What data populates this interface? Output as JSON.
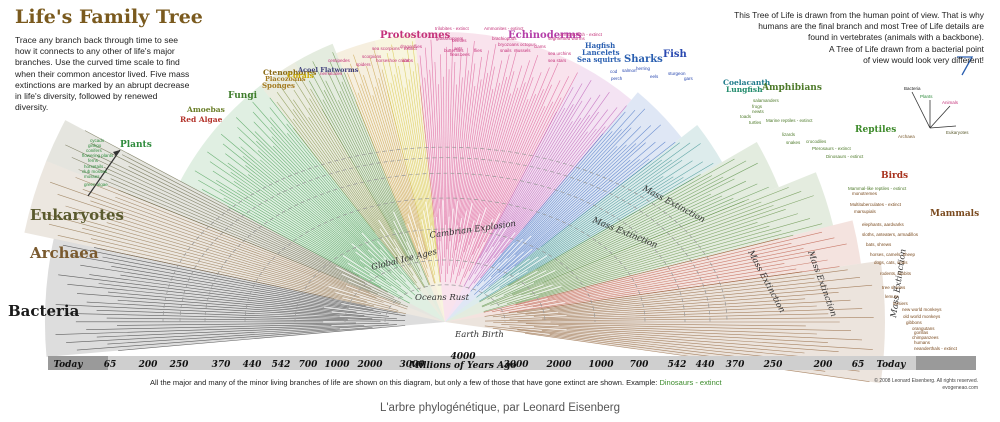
{
  "title": "Life's Family Tree",
  "intro_text": "Trace any branch back through time to see how it connects to any other of life's major branches. Use the curved time scale to find when their common ancestor lived. Five mass extinctions are marked by an abrupt decrease in life's diversity, followed by renewed diversity.",
  "note_lines": [
    "This Tree of Life is drawn from the human point of view. That is why",
    "humans are the final branch and most Tree of Life details are",
    "found in vertebrates (animals with a backbone).",
    "A Tree of Life drawn from a bacterial point",
    "of view would look very different!"
  ],
  "inset": {
    "bacteria": "Bacteria",
    "archaea": "Archaea",
    "plants": "Plants",
    "animals": "Animals",
    "eukaryotes": "Eukaryotes"
  },
  "big_labels": {
    "bacteria": "Bacteria",
    "archaea": "Archaea",
    "eukaryotes": "Eukaryotes"
  },
  "major_groups": [
    {
      "key": "plants",
      "label": "Plants",
      "color": "#2e8b3c"
    },
    {
      "key": "amoebas",
      "label": "Amoebas",
      "color": "#6b7f2a"
    },
    {
      "key": "red_algae",
      "label": "Red Algae",
      "color": "#b3322a"
    },
    {
      "key": "fungi",
      "label": "Fungi",
      "color": "#3f7d2c"
    },
    {
      "key": "sponges",
      "label": "Sponges",
      "color": "#a37a1f"
    },
    {
      "key": "placozoans",
      "label": "Placozoans",
      "color": "#a37a1f"
    },
    {
      "key": "ctenophores",
      "label": "Ctenophores",
      "color": "#8a6a14"
    },
    {
      "key": "corals",
      "label": "Corals",
      "color": "#c9a800"
    },
    {
      "key": "acoel",
      "label": "Acoel Flatworms",
      "color": "#3d3d7a"
    },
    {
      "key": "protostomes",
      "label": "Protostomes",
      "color": "#c4327a"
    },
    {
      "key": "echinoderms",
      "label": "Echinoderms",
      "color": "#b43ea8"
    },
    {
      "key": "hagfish",
      "label": "Hagfish",
      "color": "#2a5fb0"
    },
    {
      "key": "lancelets",
      "label": "Lancelets",
      "color": "#2a5fb0"
    },
    {
      "key": "sea_squirts",
      "label": "Sea squirts",
      "color": "#2a5fb0"
    },
    {
      "key": "sharks",
      "label": "Sharks",
      "color": "#2a5fb0"
    },
    {
      "key": "fish",
      "label": "Fish",
      "color": "#2a49b0"
    },
    {
      "key": "coelacanth",
      "label": "Coelacanth",
      "color": "#1e7a8a"
    },
    {
      "key": "lungfish",
      "label": "Lungfish",
      "color": "#1e8a6a"
    },
    {
      "key": "amphibians",
      "label": "Amphibians",
      "color": "#4e7a2a"
    },
    {
      "key": "reptiles",
      "label": "Reptiles",
      "color": "#3d8a2a"
    },
    {
      "key": "birds",
      "label": "Birds",
      "color": "#a8321e"
    },
    {
      "key": "mammals",
      "label": "Mammals",
      "color": "#7a4a1e"
    }
  ],
  "small_labels": [
    "flowering plants",
    "conifers",
    "ginkgo",
    "cycads",
    "ferns",
    "horsetails",
    "club mosses",
    "mosses",
    "green algae",
    "nematodes",
    "sea scorpions - extinct",
    "centipedes",
    "spiders",
    "scorpions",
    "crabs",
    "dragonflies",
    "horseshoe crabs",
    "trilobites - extinct",
    "grasshoppers",
    "beetles",
    "ants",
    "butterflies",
    "fleas",
    "bees",
    "flies",
    "Ammonites - extinct",
    "brachiopods",
    "bryozoans",
    "octopus",
    "mussels",
    "snails",
    "clams",
    "sea urchins",
    "sea stars",
    "segmented worms",
    "armored fish - extinct",
    "cod",
    "perch",
    "salmon",
    "herring",
    "eels",
    "sturgeon",
    "gars",
    "frogs",
    "salamanders",
    "newts",
    "toads",
    "turtles",
    "Marine reptiles - extinct",
    "lizards",
    "snakes",
    "crocodiles",
    "Pterosaurs - extinct",
    "Dinosaurs - extinct",
    "Mammal-like reptiles - extinct",
    "monotremes",
    "Multituberculates - extinct",
    "marsupials",
    "elephants, aardvarks",
    "sloths, anteaters, armadillos",
    "bats, shrews",
    "horses, camels, sheep",
    "dogs, cats, seals",
    "rodents, rabbits",
    "tree shrews",
    "lemurs",
    "tarsiers",
    "new world monkeys",
    "old world monkeys",
    "gibbons",
    "orangutans",
    "gorillas",
    "chimpanzees",
    "humans",
    "neanderthals - extinct"
  ],
  "eras": {
    "earth_birth": "Earth Birth",
    "oceans_rust": "Oceans Rust",
    "global_ice_ages": "Global Ice Ages",
    "cambrian": "Cambrian Explosion",
    "mass_extinction": "Mass Extinction"
  },
  "timescale": {
    "left": [
      "Today",
      "65",
      "200",
      "250",
      "370",
      "440",
      "542",
      "700",
      "1000",
      "2000",
      "3000"
    ],
    "center_value": "4000",
    "center_label": "Millions of Years Ago",
    "right": [
      "3000",
      "2000",
      "1000",
      "700",
      "542",
      "440",
      "370",
      "250",
      "200",
      "65",
      "Today"
    ]
  },
  "bottom_note": "All the major and many of the minor living branches of life are shown on this diagram, but only a few of those that have gone extinct are shown. Example:",
  "bottom_note_example": "Dinosaurs - extinct",
  "copyright_lines": [
    "© 2008 Leonard Eisenberg. All rights reserved.",
    "evogeneao.com"
  ],
  "caption": "L'arbre phylogénétique, par Leonard Eisenberg",
  "colors": {
    "bacteria": "#1a1a1a",
    "archaea": "#7a5a2e",
    "eukaryotes": "#5a5a2e",
    "plants": "#2e8b3c",
    "protostomes": "#c4327a",
    "fish": "#2a49b0",
    "mammals": "#7a4a1e"
  }
}
